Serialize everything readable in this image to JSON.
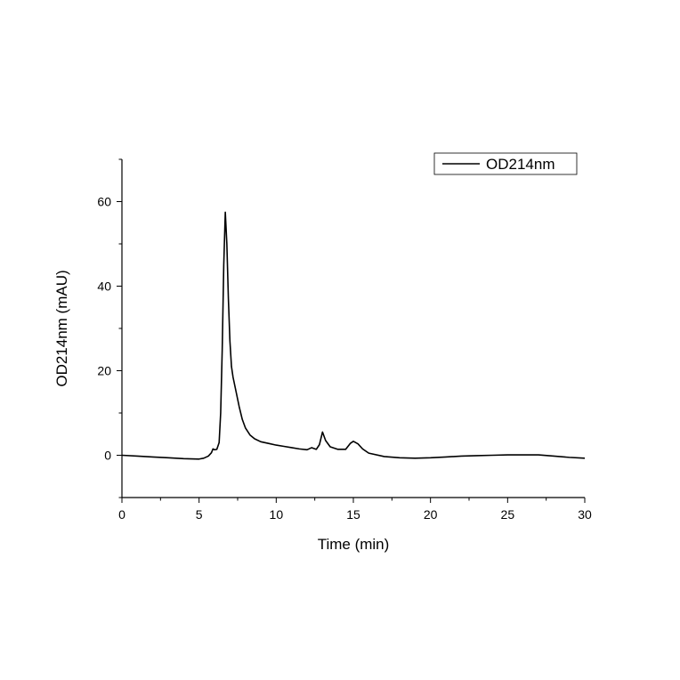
{
  "chart_data": {
    "type": "line",
    "xlabel": "Time (min)",
    "ylabel": "OD214nm (mAU)",
    "xlim": [
      0,
      30
    ],
    "ylim": [
      -10,
      70
    ],
    "x_ticks": [
      0,
      5,
      10,
      15,
      20,
      25,
      30
    ],
    "y_ticks": [
      0,
      20,
      40,
      60
    ],
    "grid": false,
    "legend_position": "top-right",
    "series": [
      {
        "name": "OD214nm",
        "color": "#000000",
        "points": [
          [
            0,
            0
          ],
          [
            1,
            -0.2
          ],
          [
            2,
            -0.4
          ],
          [
            3,
            -0.6
          ],
          [
            4,
            -0.8
          ],
          [
            5,
            -0.9
          ],
          [
            5.3,
            -0.7
          ],
          [
            5.6,
            -0.2
          ],
          [
            5.8,
            0.6
          ],
          [
            5.9,
            1.5
          ],
          [
            6.0,
            1.3
          ],
          [
            6.15,
            1.4
          ],
          [
            6.3,
            3
          ],
          [
            6.4,
            10
          ],
          [
            6.5,
            25
          ],
          [
            6.6,
            45
          ],
          [
            6.7,
            57.5
          ],
          [
            6.8,
            50
          ],
          [
            6.9,
            37
          ],
          [
            7.0,
            27
          ],
          [
            7.1,
            21
          ],
          [
            7.2,
            18.5
          ],
          [
            7.4,
            15
          ],
          [
            7.6,
            11.5
          ],
          [
            7.8,
            8.5
          ],
          [
            8.0,
            6.5
          ],
          [
            8.3,
            4.8
          ],
          [
            8.6,
            3.9
          ],
          [
            9.0,
            3.2
          ],
          [
            9.5,
            2.8
          ],
          [
            10,
            2.4
          ],
          [
            10.5,
            2.1
          ],
          [
            11,
            1.8
          ],
          [
            11.5,
            1.5
          ],
          [
            12,
            1.3
          ],
          [
            12.3,
            1.8
          ],
          [
            12.6,
            1.4
          ],
          [
            12.8,
            2.5
          ],
          [
            13.0,
            5.5
          ],
          [
            13.2,
            3.5
          ],
          [
            13.5,
            2.0
          ],
          [
            14.0,
            1.4
          ],
          [
            14.5,
            1.4
          ],
          [
            14.8,
            2.8
          ],
          [
            15.0,
            3.3
          ],
          [
            15.3,
            2.7
          ],
          [
            15.6,
            1.5
          ],
          [
            16,
            0.5
          ],
          [
            17,
            -0.3
          ],
          [
            18,
            -0.6
          ],
          [
            19,
            -0.7
          ],
          [
            20,
            -0.6
          ],
          [
            21,
            -0.4
          ],
          [
            22,
            -0.2
          ],
          [
            23,
            -0.1
          ],
          [
            24,
            0
          ],
          [
            25,
            0.1
          ],
          [
            26,
            0.1
          ],
          [
            27,
            0.1
          ],
          [
            28,
            -0.2
          ],
          [
            29,
            -0.5
          ],
          [
            30,
            -0.7
          ]
        ]
      }
    ]
  }
}
